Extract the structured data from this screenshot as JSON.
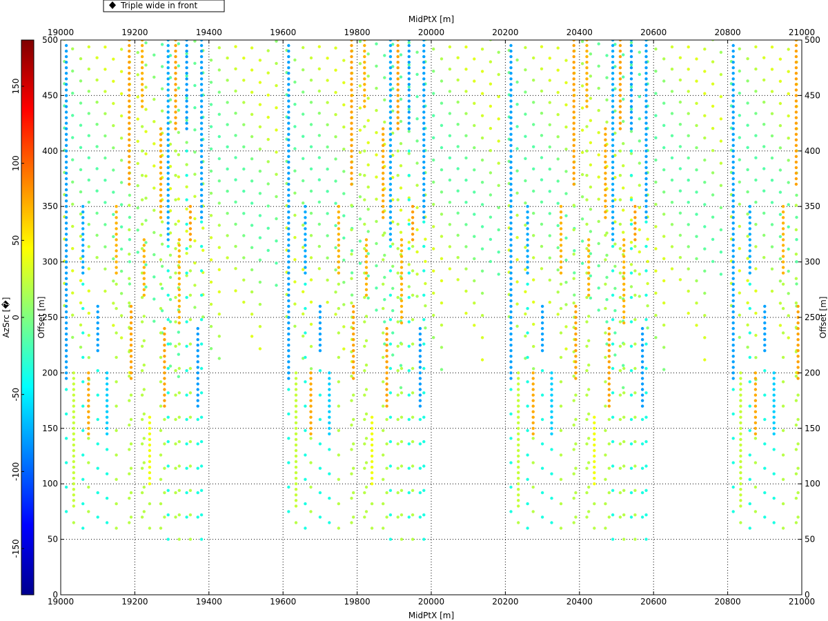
{
  "chart_data": {
    "type": "scatter",
    "title": "",
    "legend": {
      "label": "Triple wide in front",
      "placement": "top-left"
    },
    "x_axis": {
      "label": "MidPtX [m]",
      "range": [
        19000,
        21000
      ],
      "ticks": [
        "19000",
        "19200",
        "19400",
        "19600",
        "19800",
        "20000",
        "20200",
        "20400",
        "20600",
        "20800",
        "21000"
      ]
    },
    "y_axis": {
      "label": "Offset [m]",
      "range": [
        0,
        500
      ],
      "ticks": [
        "0",
        "50",
        "100",
        "150",
        "200",
        "250",
        "300",
        "350",
        "400",
        "450",
        "500"
      ]
    },
    "colorbar": {
      "label": "AzSrc [�]",
      "range": [
        -180,
        180
      ],
      "ticks": [
        "-150",
        "-100",
        "-50",
        "0",
        "50",
        "100",
        "150"
      ],
      "colormap": "jet"
    },
    "grid": true,
    "pattern": {
      "note_period_x": 600,
      "lines": [
        {
          "x": 19015,
          "ymin": 195,
          "ymax": 495,
          "az": -78
        },
        {
          "x": 19035,
          "ymin": 80,
          "ymax": 200,
          "az": 25
        },
        {
          "x": 19060,
          "ymin": 290,
          "ymax": 350,
          "az": -75
        },
        {
          "x": 19075,
          "ymin": 145,
          "ymax": 200,
          "az": 75
        },
        {
          "x": 19100,
          "ymin": 220,
          "ymax": 260,
          "az": -78
        },
        {
          "x": 19125,
          "ymin": 145,
          "ymax": 200,
          "az": -62
        },
        {
          "x": 19150,
          "ymin": 290,
          "ymax": 350,
          "az": 72
        },
        {
          "x": 19185,
          "ymin": 370,
          "ymax": 500,
          "az": 78
        },
        {
          "x": 19190,
          "ymin": 195,
          "ymax": 260,
          "az": 78
        },
        {
          "x": 19220,
          "ymin": 440,
          "ymax": 500,
          "az": 72
        },
        {
          "x": 19225,
          "ymin": 270,
          "ymax": 320,
          "az": 72
        },
        {
          "x": 19240,
          "ymin": 100,
          "ymax": 160,
          "az": 40
        },
        {
          "x": 19270,
          "ymin": 340,
          "ymax": 420,
          "az": 75
        },
        {
          "x": 19280,
          "ymin": 170,
          "ymax": 240,
          "az": 78
        },
        {
          "x": 19290,
          "ymin": 320,
          "ymax": 500,
          "az": -75
        },
        {
          "x": 19310,
          "ymin": 420,
          "ymax": 500,
          "az": 78
        },
        {
          "x": 19320,
          "ymin": 245,
          "ymax": 320,
          "az": 72
        },
        {
          "x": 19340,
          "ymin": 420,
          "ymax": 500,
          "az": -80
        },
        {
          "x": 19350,
          "ymin": 320,
          "ymax": 350,
          "az": 80
        },
        {
          "x": 19370,
          "ymin": 170,
          "ymax": 240,
          "az": -80
        },
        {
          "x": 19380,
          "ymin": 340,
          "ymax": 500,
          "az": -78
        }
      ]
    }
  }
}
